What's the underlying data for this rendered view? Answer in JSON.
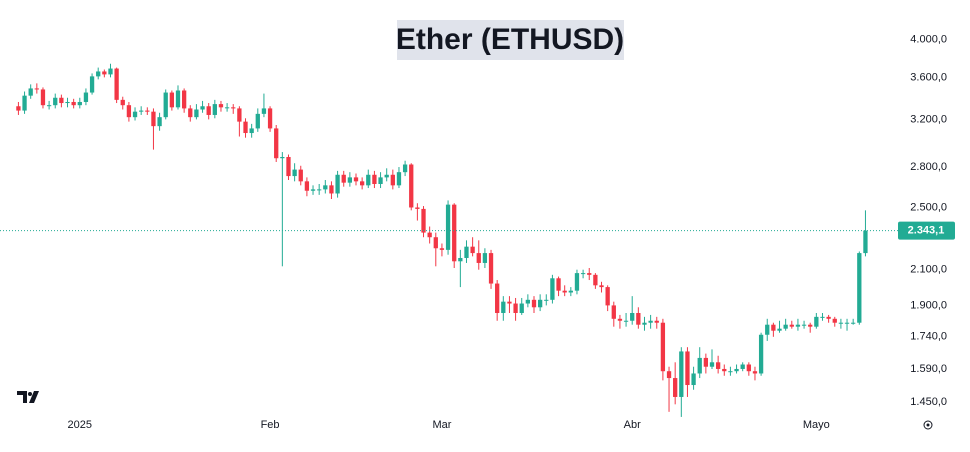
{
  "chart_data": {
    "type": "candlestick",
    "title": "Ether (ETHUSD)",
    "log_scale": true,
    "up_color": "#22ab94",
    "down_color": "#f23645",
    "ylim": [
      1340,
      4348
    ],
    "xlim": [
      -3,
      142
    ],
    "yticks": [
      {
        "value": 1450,
        "label": "1.450,0"
      },
      {
        "value": 1590,
        "label": "1.590,0"
      },
      {
        "value": 1740,
        "label": "1.740,0"
      },
      {
        "value": 1900,
        "label": "1.900,0"
      },
      {
        "value": 2100,
        "label": "2.100,0"
      },
      {
        "value": 2500,
        "label": "2.500,0"
      },
      {
        "value": 2800,
        "label": "2.800,0"
      },
      {
        "value": 3200,
        "label": "3.200,0"
      },
      {
        "value": 3600,
        "label": "3.600,0"
      },
      {
        "value": 4000,
        "label": "4.000,0"
      }
    ],
    "xticks": [
      {
        "value": 10,
        "label": "2025"
      },
      {
        "value": 41,
        "label": "Feb"
      },
      {
        "value": 69,
        "label": "Mar"
      },
      {
        "value": 100,
        "label": "Abr"
      },
      {
        "value": 130,
        "label": "Mayo"
      }
    ],
    "last_price": {
      "value": 2343.1,
      "label": "2.343,1"
    },
    "open": [
      3320,
      3280,
      3420,
      3490,
      3480,
      3330,
      3330,
      3400,
      3350,
      3360,
      3330,
      3360,
      3450,
      3610,
      3660,
      3630,
      3690,
      3380,
      3330,
      3220,
      3270,
      3280,
      3270,
      3140,
      3220,
      3450,
      3310,
      3470,
      3300,
      3220,
      3290,
      3320,
      3240,
      3340,
      3310,
      3310,
      3300,
      3180,
      3080,
      3120,
      3250,
      3300,
      3120,
      2870,
      2880,
      2730,
      2780,
      2690,
      2620,
      2630,
      2630,
      2660,
      2600,
      2740,
      2680,
      2720,
      2690,
      2660,
      2740,
      2670,
      2720,
      2740,
      2660,
      2760,
      2820,
      2500,
      2490,
      2330,
      2300,
      2230,
      2220,
      2520,
      2150,
      2170,
      2240,
      2200,
      2140,
      2200,
      2020,
      1860,
      1920,
      1910,
      1860,
      1910,
      1930,
      1890,
      1930,
      1930,
      2050,
      1980,
      1970,
      1980,
      2080,
      2080,
      2070,
      2010,
      2000,
      1900,
      1830,
      1820,
      1820,
      1860,
      1800,
      1810,
      1820,
      1810,
      1580,
      1550,
      1470,
      1670,
      1520,
      1570,
      1640,
      1600,
      1620,
      1590,
      1580,
      1580,
      1590,
      1610,
      1580,
      1570,
      1750,
      1800,
      1770,
      1780,
      1800,
      1790,
      1800,
      1800,
      1790,
      1840,
      1840,
      1830,
      1810,
      1810,
      1810,
      1810,
      2200
    ],
    "high": [
      3360,
      3460,
      3530,
      3540,
      3500,
      3370,
      3440,
      3430,
      3400,
      3390,
      3400,
      3490,
      3640,
      3700,
      3680,
      3740,
      3700,
      3410,
      3360,
      3310,
      3320,
      3310,
      3300,
      3260,
      3480,
      3470,
      3520,
      3490,
      3330,
      3340,
      3370,
      3350,
      3380,
      3370,
      3350,
      3340,
      3320,
      3210,
      3160,
      3300,
      3440,
      3320,
      3150,
      2920,
      2900,
      2830,
      2810,
      2720,
      2660,
      2670,
      2700,
      2690,
      2770,
      2770,
      2760,
      2750,
      2720,
      2780,
      2770,
      2760,
      2790,
      2780,
      2800,
      2850,
      2830,
      2530,
      2510,
      2370,
      2330,
      2260,
      2550,
      2530,
      2220,
      2280,
      2300,
      2280,
      2230,
      2220,
      2040,
      1950,
      1950,
      1940,
      1940,
      1960,
      1950,
      1960,
      1960,
      2070,
      2060,
      2010,
      2000,
      2100,
      2100,
      2110,
      2080,
      2030,
      2010,
      1920,
      1850,
      1860,
      1950,
      1890,
      1840,
      1850,
      1840,
      1830,
      1600,
      1620,
      1690,
      1690,
      1600,
      1690,
      1660,
      1680,
      1650,
      1610,
      1600,
      1610,
      1620,
      1620,
      1600,
      1760,
      1830,
      1810,
      1820,
      1830,
      1820,
      1830,
      1820,
      1810,
      1860,
      1860,
      1850,
      1840,
      1830,
      1830,
      1830,
      2210,
      2480
    ],
    "low": [
      3240,
      3250,
      3390,
      3440,
      3300,
      3290,
      3300,
      3310,
      3310,
      3300,
      3300,
      3330,
      3430,
      3580,
      3600,
      3600,
      3350,
      3290,
      3180,
      3190,
      3240,
      3240,
      2940,
      3100,
      3200,
      3280,
      3290,
      3260,
      3180,
      3200,
      3260,
      3200,
      3210,
      3270,
      3270,
      3250,
      3050,
      3040,
      3040,
      3090,
      3220,
      3090,
      2840,
      2120,
      2700,
      2690,
      2660,
      2580,
      2590,
      2590,
      2600,
      2560,
      2570,
      2650,
      2650,
      2660,
      2630,
      2640,
      2640,
      2640,
      2690,
      2630,
      2640,
      2730,
      2480,
      2410,
      2300,
      2260,
      2120,
      2180,
      2190,
      2110,
      2000,
      2140,
      2180,
      2100,
      2110,
      1990,
      1820,
      1820,
      1860,
      1820,
      1850,
      1890,
      1860,
      1870,
      1900,
      1910,
      1950,
      1950,
      1950,
      1960,
      2050,
      2040,
      1990,
      1970,
      1870,
      1790,
      1780,
      1790,
      1800,
      1780,
      1770,
      1780,
      1780,
      1540,
      1410,
      1440,
      1390,
      1470,
      1500,
      1550,
      1570,
      1590,
      1570,
      1560,
      1560,
      1570,
      1580,
      1560,
      1540,
      1560,
      1720,
      1740,
      1760,
      1770,
      1780,
      1770,
      1780,
      1760,
      1780,
      1820,
      1810,
      1790,
      1780,
      1770,
      1800,
      1800,
      2180
    ],
    "close": [
      3280,
      3420,
      3490,
      3480,
      3330,
      3330,
      3400,
      3350,
      3360,
      3330,
      3360,
      3450,
      3610,
      3660,
      3630,
      3690,
      3380,
      3330,
      3220,
      3270,
      3280,
      3270,
      3140,
      3220,
      3450,
      3310,
      3470,
      3300,
      3220,
      3290,
      3320,
      3240,
      3340,
      3310,
      3310,
      3300,
      3180,
      3080,
      3120,
      3250,
      3300,
      3120,
      2870,
      2880,
      2730,
      2780,
      2690,
      2620,
      2630,
      2630,
      2660,
      2600,
      2740,
      2680,
      2720,
      2690,
      2660,
      2740,
      2670,
      2720,
      2740,
      2660,
      2760,
      2820,
      2500,
      2490,
      2330,
      2300,
      2230,
      2220,
      2520,
      2150,
      2170,
      2240,
      2200,
      2140,
      2200,
      2020,
      1860,
      1920,
      1910,
      1860,
      1910,
      1930,
      1890,
      1930,
      1930,
      2050,
      1980,
      1970,
      1980,
      2080,
      2080,
      2070,
      2010,
      2000,
      1900,
      1830,
      1820,
      1820,
      1860,
      1800,
      1810,
      1820,
      1810,
      1580,
      1550,
      1470,
      1670,
      1520,
      1570,
      1640,
      1600,
      1620,
      1590,
      1580,
      1580,
      1590,
      1610,
      1580,
      1570,
      1750,
      1800,
      1770,
      1780,
      1800,
      1790,
      1800,
      1800,
      1790,
      1840,
      1840,
      1830,
      1810,
      1810,
      1810,
      1810,
      2200,
      2343.1
    ]
  }
}
